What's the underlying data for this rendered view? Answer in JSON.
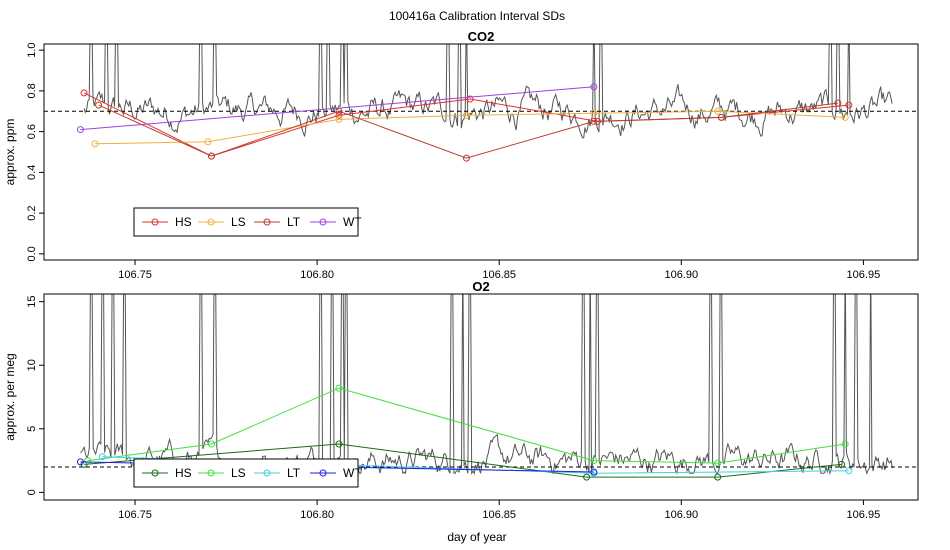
{
  "figure": {
    "title": "100416a   Calibration Interval SDs",
    "xlabel": "day of year"
  },
  "chart_data": [
    {
      "type": "line",
      "title": "CO2",
      "ylabel": "approx. ppm",
      "xlim": [
        106.725,
        106.965
      ],
      "ylim": [
        -0.03,
        1.03
      ],
      "xticks": [
        106.75,
        106.8,
        106.85,
        106.9,
        106.95
      ],
      "xtick_labels": [
        "106.75",
        "106.80",
        "106.85",
        "106.90",
        "106.95"
      ],
      "yticks": [
        0.0,
        0.2,
        0.4,
        0.6,
        0.8,
        1.0
      ],
      "ytick_labels": [
        "0.0",
        "0.2",
        "0.4",
        "0.6",
        "0.8",
        "1.0"
      ],
      "reference_line": {
        "y": 0.7,
        "style": "dashed",
        "color": "#000000"
      },
      "background_trace": {
        "color": "#555555",
        "x_range": [
          106.736,
          106.958
        ],
        "baseline": 0.7,
        "noise_range": [
          0.55,
          0.85
        ],
        "spike_x": [
          106.738,
          106.742,
          106.745,
          106.768,
          106.772,
          106.801,
          106.803,
          106.807,
          106.808,
          106.836,
          106.839,
          106.841,
          106.876,
          106.878,
          106.941,
          106.943,
          106.946
        ]
      },
      "series": [
        {
          "name": "HS",
          "color": "#e03030",
          "x": [
            106.736,
            106.771,
            106.806,
            106.842,
            106.877,
            106.911,
            106.946
          ],
          "y": [
            0.79,
            0.48,
            0.68,
            0.76,
            0.65,
            0.67,
            0.73
          ]
        },
        {
          "name": "LS",
          "color": "#f0b040",
          "x": [
            106.739,
            106.77,
            106.806,
            106.841,
            106.876,
            106.91,
            106.945
          ],
          "y": [
            0.54,
            0.55,
            0.66,
            0.68,
            0.69,
            0.7,
            0.67
          ]
        },
        {
          "name": "LT",
          "color": "#b84030",
          "x": [
            106.74,
            106.771,
            106.806,
            106.841,
            106.876,
            106.911,
            106.943
          ],
          "y": [
            0.73,
            0.48,
            0.7,
            0.47,
            0.65,
            0.67,
            0.74
          ]
        },
        {
          "name": "WT",
          "color": "#a040e0",
          "x": [
            106.735,
            106.876
          ],
          "y": [
            0.61,
            0.82
          ]
        }
      ],
      "legend": {
        "placement": "bottom-left",
        "entries": [
          "HS",
          "LS",
          "LT",
          "WT"
        ]
      }
    },
    {
      "type": "line",
      "title": "O2",
      "ylabel": "approx. per meg",
      "xlim": [
        106.725,
        106.965
      ],
      "ylim": [
        -0.6,
        15.6
      ],
      "xticks": [
        106.75,
        106.8,
        106.85,
        106.9,
        106.95
      ],
      "xtick_labels": [
        "106.75",
        "106.80",
        "106.85",
        "106.90",
        "106.95"
      ],
      "yticks": [
        0,
        5,
        10,
        15
      ],
      "ytick_labels": [
        "0",
        "5",
        "10",
        "15"
      ],
      "reference_line": {
        "y": 2.0,
        "style": "dashed",
        "color": "#000000"
      },
      "background_trace": {
        "color": "#555555",
        "x_range": [
          106.735,
          106.958
        ],
        "baseline": 2.5,
        "noise_range": [
          1.5,
          6.0
        ],
        "spike_x": [
          106.738,
          106.741,
          106.744,
          106.747,
          106.768,
          106.772,
          106.801,
          106.804,
          106.807,
          106.808,
          106.837,
          106.84,
          106.842,
          106.873,
          106.875,
          106.877,
          106.908,
          106.911,
          106.942,
          106.945,
          106.948,
          106.952
        ]
      },
      "series": [
        {
          "name": "HS",
          "color": "#1a6b1a",
          "x": [
            106.736,
            106.806,
            106.874,
            106.91,
            106.944
          ],
          "y": [
            2.2,
            3.8,
            1.2,
            1.2,
            2.2
          ]
        },
        {
          "name": "LS",
          "color": "#40e040",
          "x": [
            106.737,
            106.771,
            106.806,
            106.876,
            106.91,
            106.945
          ],
          "y": [
            2.5,
            3.8,
            8.2,
            2.5,
            2.3,
            3.8
          ]
        },
        {
          "name": "LT",
          "color": "#40d0e0",
          "x": [
            106.741,
            106.876,
            106.946
          ],
          "y": [
            2.8,
            1.5,
            1.7
          ]
        },
        {
          "name": "WT",
          "color": "#2020e0",
          "x": [
            106.735,
            106.876
          ],
          "y": [
            2.4,
            1.6
          ]
        }
      ],
      "legend": {
        "placement": "bottom-left",
        "entries": [
          "HS",
          "LS",
          "LT",
          "WT"
        ]
      }
    }
  ]
}
